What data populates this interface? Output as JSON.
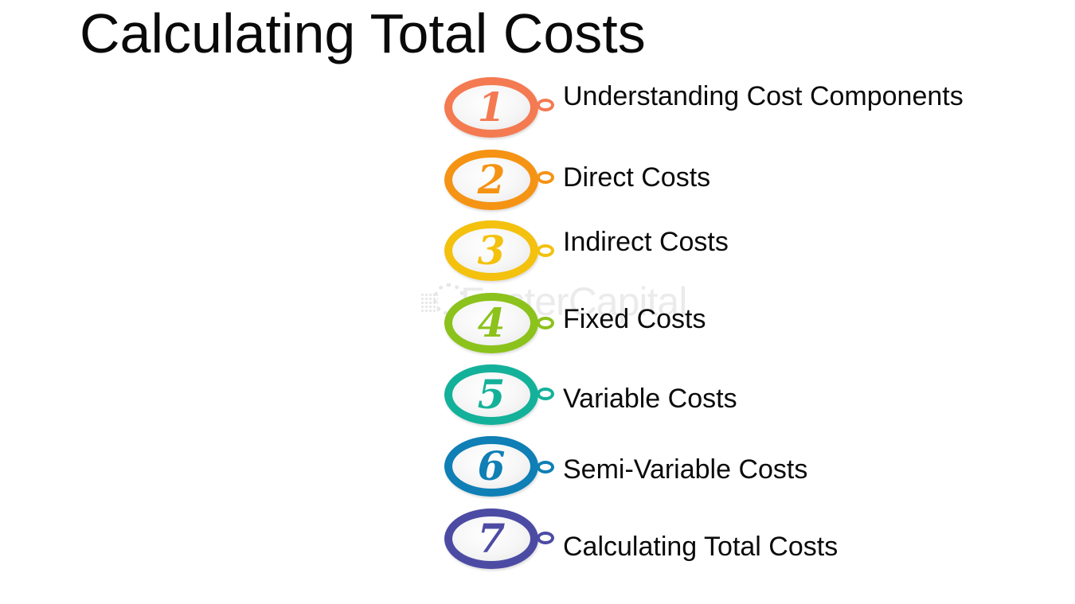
{
  "title": "Calculating Total Costs",
  "watermark": "FasterCapital",
  "steps": [
    {
      "number": "1",
      "label": "Understanding Cost Components",
      "color": "#f47a52"
    },
    {
      "number": "2",
      "label": "Direct Costs",
      "color": "#f59314"
    },
    {
      "number": "3",
      "label": "Indirect Costs",
      "color": "#f3c10e"
    },
    {
      "number": "4",
      "label": "Fixed Costs",
      "color": "#8cc21c"
    },
    {
      "number": "5",
      "label": "Variable Costs",
      "color": "#14b19a"
    },
    {
      "number": "6",
      "label": "Semi-Variable Costs",
      "color": "#0f7fb5"
    },
    {
      "number": "7",
      "label": "Calculating Total Costs",
      "color": "#4c4ba4"
    }
  ]
}
